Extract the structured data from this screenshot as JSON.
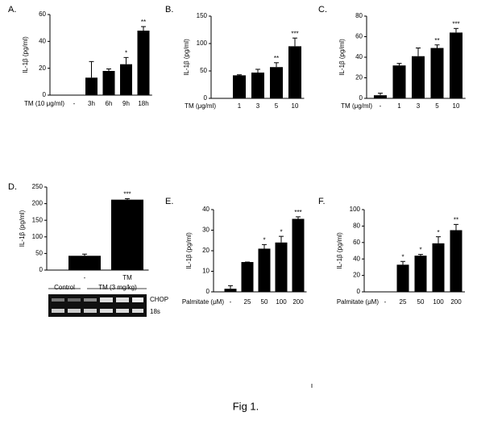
{
  "chart_data": [
    {
      "type": "bar",
      "panel": "A.",
      "ylabel": "IL-1β (pg/ml)",
      "xlabel": "TM (10 μg/ml)",
      "categories": [
        "-",
        "3h",
        "6h",
        "9h",
        "18h"
      ],
      "values": [
        0,
        13,
        18,
        23,
        48
      ],
      "errors": [
        null,
        12,
        1.5,
        5,
        3
      ],
      "annotations": [
        null,
        null,
        null,
        "*",
        "**"
      ],
      "ylim": [
        0,
        60
      ],
      "yticks": [
        0,
        20,
        40,
        60
      ],
      "color": "#000000"
    },
    {
      "type": "bar",
      "panel": "B.",
      "ylabel": "IL-1β (pg/ml)",
      "xlabel": "TM (μg/ml)",
      "categories": [
        null,
        "1",
        "3",
        "5",
        "10"
      ],
      "values": [
        0,
        42,
        47,
        57,
        95
      ],
      "errors": [
        null,
        1,
        6,
        8,
        15
      ],
      "annotations": [
        null,
        null,
        null,
        "**",
        "***"
      ],
      "ylim": [
        0,
        150
      ],
      "yticks": [
        0,
        50,
        100,
        150
      ],
      "color": "#000000"
    },
    {
      "type": "bar",
      "panel": "C.",
      "ylabel": "IL-1β (pg/ml)",
      "xlabel": "TM (μg/ml)",
      "categories": [
        "-",
        "1",
        "3",
        "5",
        "10"
      ],
      "values": [
        3,
        32,
        41,
        49,
        64
      ],
      "errors": [
        2,
        2,
        8,
        3,
        4
      ],
      "annotations": [
        null,
        null,
        null,
        "**",
        "***"
      ],
      "ylim": [
        0,
        80
      ],
      "yticks": [
        0,
        20,
        40,
        60,
        80
      ],
      "color": "#000000"
    },
    {
      "type": "bar",
      "panel": "D.",
      "ylabel": "IL-1β (pg/ml)",
      "categories": [
        "-",
        "TM"
      ],
      "values": [
        43,
        212
      ],
      "errors": [
        5,
        3
      ],
      "annotations": [
        null,
        "***"
      ],
      "ylim": [
        0,
        250
      ],
      "yticks": [
        0,
        50,
        100,
        150,
        200,
        250
      ],
      "color": "#000000",
      "blot": {
        "groups": [
          "Control",
          "TM (3 mg/kg)"
        ],
        "rows": [
          "CHOP",
          "18s"
        ]
      }
    },
    {
      "type": "bar",
      "panel": "E.",
      "ylabel": "IL-1β (pg/ml)",
      "xlabel": "Palmitate (μM)",
      "categories": [
        "-",
        "25",
        "50",
        "100",
        "200"
      ],
      "values": [
        1.5,
        14.5,
        21,
        24,
        35.5
      ],
      "errors": [
        1.5,
        0,
        2,
        3,
        1
      ],
      "annotations": [
        null,
        null,
        "*",
        "*",
        "***"
      ],
      "ylim": [
        0,
        40
      ],
      "yticks": [
        0,
        10,
        20,
        30,
        40
      ],
      "color": "#000000"
    },
    {
      "type": "bar",
      "panel": "F.",
      "ylabel": "IL-1β (pg/ml)",
      "xlabel": "Palmitate (μM)",
      "categories": [
        "-",
        "25",
        "50",
        "100",
        "200"
      ],
      "values": [
        0,
        33,
        44,
        59,
        75
      ],
      "errors": [
        null,
        4,
        1.5,
        8,
        7
      ],
      "annotations": [
        null,
        "*",
        "*",
        "*",
        "**"
      ],
      "ylim": [
        0,
        100
      ],
      "yticks": [
        0,
        20,
        40,
        60,
        80,
        100
      ],
      "color": "#000000"
    }
  ],
  "caption": "Fig 1."
}
